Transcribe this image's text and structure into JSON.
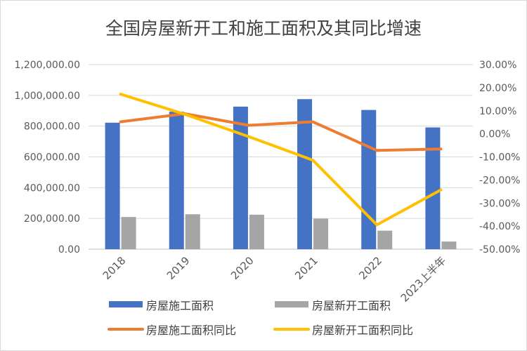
{
  "chart_data": {
    "type": "bar",
    "title": "全国房屋新开工和施工面积及其同比增速",
    "categories": [
      "2018",
      "2019",
      "2020",
      "2021",
      "2022",
      "2023上半年"
    ],
    "ylim": [
      0,
      1200000
    ],
    "y2lim": [
      -50,
      30
    ],
    "yticks": [
      "0.00",
      "200,000.00",
      "400,000.00",
      "600,000.00",
      "800,000.00",
      "1,000,000.00",
      "1,200,000.00"
    ],
    "y2ticks": [
      "-50.00%",
      "-40.00%",
      "-30.00%",
      "-20.00%",
      "-10.00%",
      "0.00%",
      "10.00%",
      "20.00%",
      "30.00%"
    ],
    "grid": true,
    "legend_position": "bottom",
    "bar_series": [
      {
        "name": "房屋施工面积",
        "color": "#4472c4",
        "values": [
          822300,
          893821,
          926759,
          975387,
          904999,
          791548
        ]
      },
      {
        "name": "房屋新开工面积",
        "color": "#a5a5a5",
        "values": [
          209342,
          227154,
          224433,
          198895,
          120587,
          49880
        ]
      }
    ],
    "line_series": [
      {
        "name": "房屋施工面积同比",
        "color": "#ed7d31",
        "values": [
          5.2,
          8.7,
          3.7,
          5.2,
          -7.2,
          -6.6
        ]
      },
      {
        "name": "房屋新开工面积同比",
        "color": "#ffc000",
        "values": [
          17.2,
          8.5,
          -1.2,
          -11.4,
          -39.4,
          -24.3
        ]
      }
    ]
  }
}
